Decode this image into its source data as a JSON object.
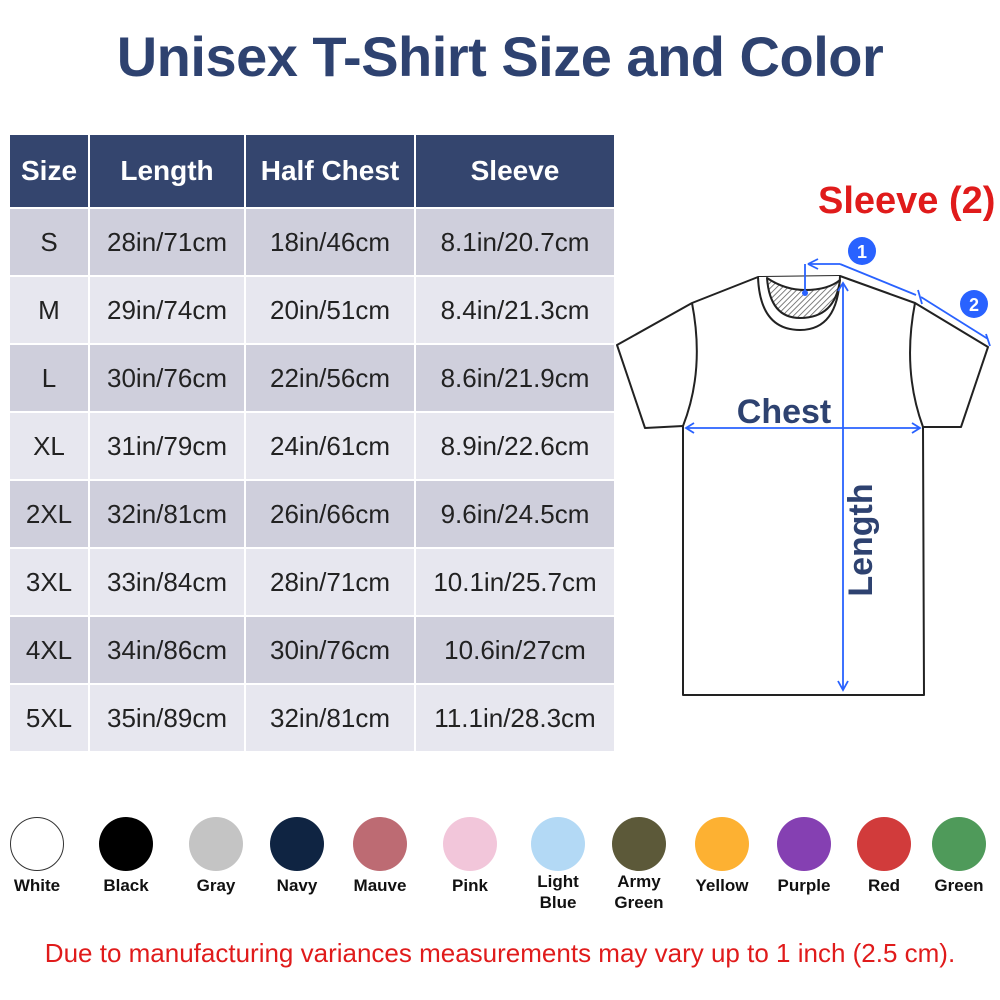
{
  "title": "Unisex T-Shirt Size and Color",
  "table": {
    "headers": [
      "Size",
      "Length",
      "Half Chest",
      "Sleeve"
    ],
    "rows": [
      [
        "S",
        "28in/71cm",
        "18in/46cm",
        "8.1in/20.7cm"
      ],
      [
        "M",
        "29in/74cm",
        "20in/51cm",
        "8.4in/21.3cm"
      ],
      [
        "L",
        "30in/76cm",
        "22in/56cm",
        "8.6in/21.9cm"
      ],
      [
        "XL",
        "31in/79cm",
        "24in/61cm",
        "8.9in/22.6cm"
      ],
      [
        "2XL",
        "32in/81cm",
        "26in/66cm",
        "9.6in/24.5cm"
      ],
      [
        "3XL",
        "33in/84cm",
        "28in/71cm",
        "10.1in/25.7cm"
      ],
      [
        "4XL",
        "34in/86cm",
        "30in/76cm",
        "10.6in/27cm"
      ],
      [
        "5XL",
        "35in/89cm",
        "32in/81cm",
        "11.1in/28.3cm"
      ]
    ]
  },
  "diagram": {
    "sleeve_title": "Sleeve (2)",
    "chest_label": "Chest",
    "length_label": "Length",
    "marker_1": "1",
    "marker_2": "2",
    "line_color": "#2962ff"
  },
  "colors": [
    {
      "name": "White",
      "hex": "#ffffff"
    },
    {
      "name": "Black",
      "hex": "#000000"
    },
    {
      "name": "Gray",
      "hex": "#c4c4c4"
    },
    {
      "name": "Navy",
      "hex": "#0f2442"
    },
    {
      "name": "Mauve",
      "hex": "#bd6b73"
    },
    {
      "name": "Pink",
      "hex": "#f2c6da"
    },
    {
      "name": "Light Blue",
      "hex": "#b3d9f5"
    },
    {
      "name": "Army Green",
      "hex": "#5c5939"
    },
    {
      "name": "Yellow",
      "hex": "#fdb132"
    },
    {
      "name": "Purple",
      "hex": "#8540b2"
    },
    {
      "name": "Red",
      "hex": "#d13b3b"
    },
    {
      "name": "Green",
      "hex": "#4f9a5a"
    }
  ],
  "note": "Due to manufacturing variances measurements may vary up to 1 inch (2.5 cm)."
}
